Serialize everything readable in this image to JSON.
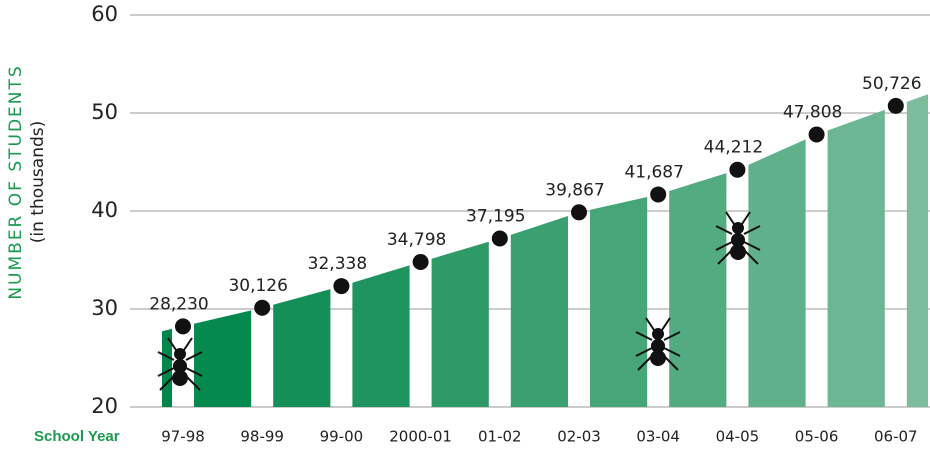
{
  "chart_data": {
    "type": "area",
    "y_label": "NUMBER OF STUDENTS",
    "y_sublabel": "(in thousands)",
    "x_label": "School Year",
    "categories": [
      "97-98",
      "98-99",
      "99-00",
      "2000-01",
      "01-02",
      "02-03",
      "03-04",
      "04-05",
      "05-06",
      "06-07"
    ],
    "values": [
      28.23,
      30.126,
      32.338,
      34.798,
      37.195,
      39.867,
      41.687,
      44.212,
      47.808,
      50.726
    ],
    "value_labels": [
      "28,230",
      "30,126",
      "32,338",
      "34,798",
      "37,195",
      "39,867",
      "41,687",
      "44,212",
      "47,808",
      "50,726"
    ],
    "colors": [
      "#00864a",
      "#80bfa0"
    ],
    "label_color": "#1a9a50",
    "ylim": [
      20,
      60
    ],
    "yticks": [
      20,
      30,
      40,
      50,
      60
    ],
    "grid": true
  }
}
